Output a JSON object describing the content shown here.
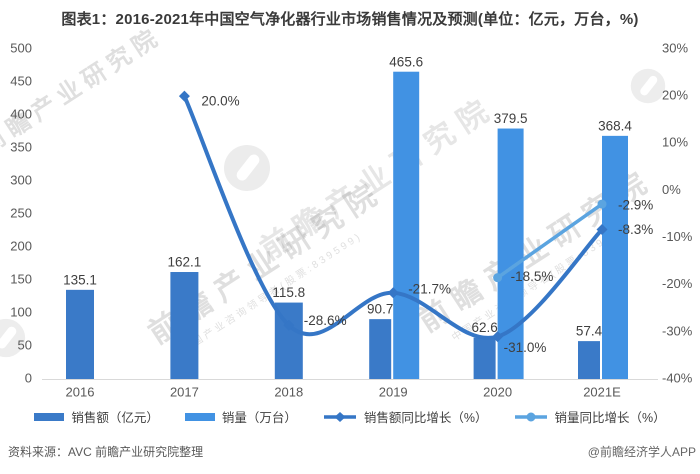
{
  "title": "图表1：2016-2021年中国空气净化器行业市场销售情况及预测(单位：亿元，万台，%)",
  "footer": {
    "source": "资料来源：AVC 前瞻产业研究院整理",
    "credit": "@前瞻经济学人APP"
  },
  "watermark": {
    "brand": "前瞻产业研究院",
    "sub": "中国产业咨询领导者(股票:839599)"
  },
  "colors": {
    "sales_bar": "#3a7ac8",
    "volume_bar": "#4192e3",
    "sales_line": "#3576c6",
    "volume_line": "#5ba4e0",
    "axis_text": "#595959",
    "label_text": "#3f3f3f",
    "axis_line": "#d9d9d9"
  },
  "chart_data": {
    "type": "combo bar+line, dual axis",
    "categories": [
      "2016",
      "2017",
      "2018",
      "2019",
      "2020",
      "2021E"
    ],
    "left_axis": {
      "min": 0,
      "max": 500,
      "step": 50
    },
    "right_axis": {
      "min": -40,
      "max": 30,
      "step": 10,
      "unit": "%"
    },
    "grid": false,
    "legend_position": "bottom",
    "series": [
      {
        "key": "sales",
        "name": "销售额（亿元）",
        "type": "bar",
        "axis": "left",
        "color": "#3a7ac8",
        "values": [
          135.1,
          162.1,
          115.8,
          90.7,
          62.6,
          57.4
        ],
        "labels": [
          "135.1",
          "162.1",
          "115.8",
          "90.7",
          "62.6",
          "57.4"
        ]
      },
      {
        "key": "volume",
        "name": "销量（万台）",
        "type": "bar",
        "axis": "left",
        "color": "#4192e3",
        "values": [
          null,
          null,
          null,
          465.6,
          379.5,
          368.4
        ],
        "labels": [
          null,
          null,
          null,
          "465.6",
          "379.5",
          "368.4"
        ]
      },
      {
        "key": "sales_growth",
        "name": "销售额同比增长（%）",
        "type": "line",
        "marker": "diamond",
        "axis": "right",
        "color": "#3576c6",
        "values": [
          null,
          20.0,
          -28.6,
          -21.7,
          -31.0,
          -8.3
        ],
        "labels": [
          null,
          "20.0%",
          "-28.6%",
          "-21.7%",
          "-31.0%",
          "-8.3%"
        ],
        "label_offsets": [
          null,
          [
            17,
            6
          ],
          [
            15,
            -4
          ],
          [
            15,
            -3
          ],
          [
            6,
            12
          ],
          [
            16,
            1
          ]
        ]
      },
      {
        "key": "volume_growth",
        "name": "销量同比增长（%）",
        "type": "line",
        "marker": "circle",
        "axis": "right",
        "color": "#5ba4e0",
        "values": [
          null,
          null,
          null,
          null,
          -18.5,
          -2.9
        ],
        "labels": [
          null,
          null,
          null,
          null,
          "-18.5%",
          "-2.9%"
        ],
        "label_offsets": [
          null,
          null,
          null,
          null,
          [
            13,
            0
          ],
          [
            16,
            2
          ]
        ]
      }
    ]
  }
}
